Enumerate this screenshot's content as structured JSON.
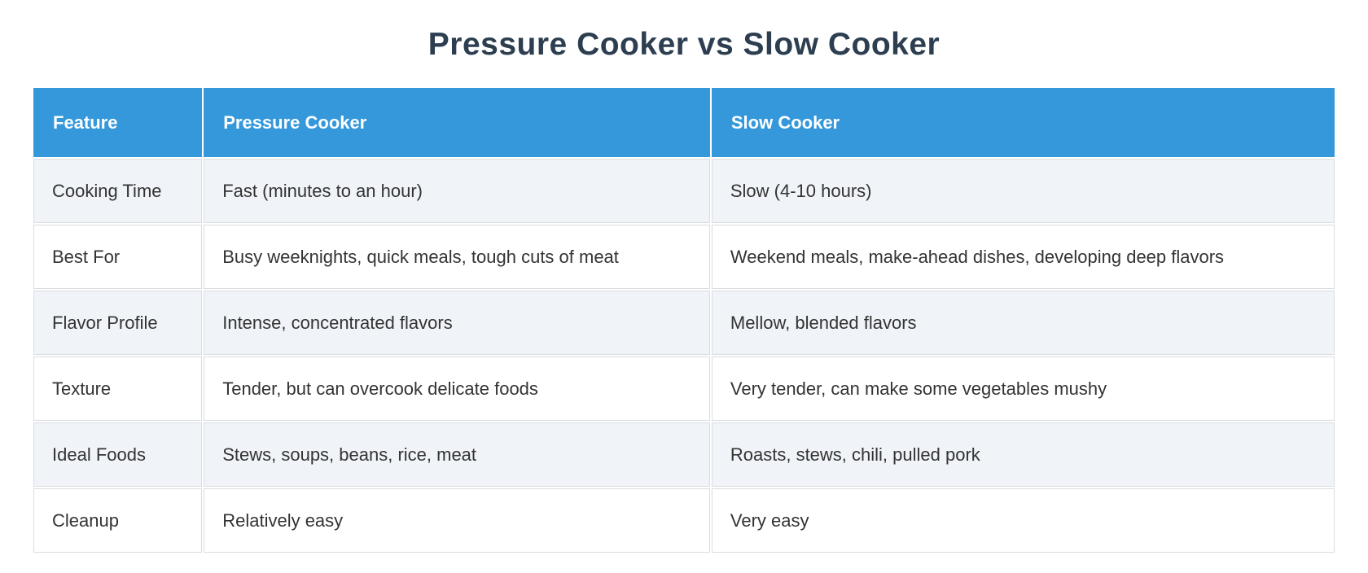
{
  "page_title": "Pressure Cooker vs Slow Cooker",
  "colors": {
    "title_text": "#2c3e50",
    "header_bg": "#3498db",
    "header_text": "#ffffff",
    "row_bg": "#ffffff",
    "row_alt_bg": "#f0f4f8",
    "border": "#d9dce0",
    "body_text": "#333333"
  },
  "table": {
    "columns": [
      "Feature",
      "Pressure Cooker",
      "Slow Cooker"
    ],
    "rows": [
      {
        "feature": "Cooking Time",
        "pressure_cooker": "Fast (minutes to an hour)",
        "slow_cooker": "Slow (4-10 hours)"
      },
      {
        "feature": "Best For",
        "pressure_cooker": "Busy weeknights, quick meals, tough cuts of meat",
        "slow_cooker": "Weekend meals, make-ahead dishes, developing deep flavors"
      },
      {
        "feature": "Flavor Profile",
        "pressure_cooker": "Intense, concentrated flavors",
        "slow_cooker": "Mellow, blended flavors"
      },
      {
        "feature": "Texture",
        "pressure_cooker": "Tender, but can overcook delicate foods",
        "slow_cooker": "Very tender, can make some vegetables mushy"
      },
      {
        "feature": "Ideal Foods",
        "pressure_cooker": "Stews, soups, beans, rice, meat",
        "slow_cooker": "Roasts, stews, chili, pulled pork"
      },
      {
        "feature": "Cleanup",
        "pressure_cooker": "Relatively easy",
        "slow_cooker": "Very easy"
      }
    ]
  }
}
